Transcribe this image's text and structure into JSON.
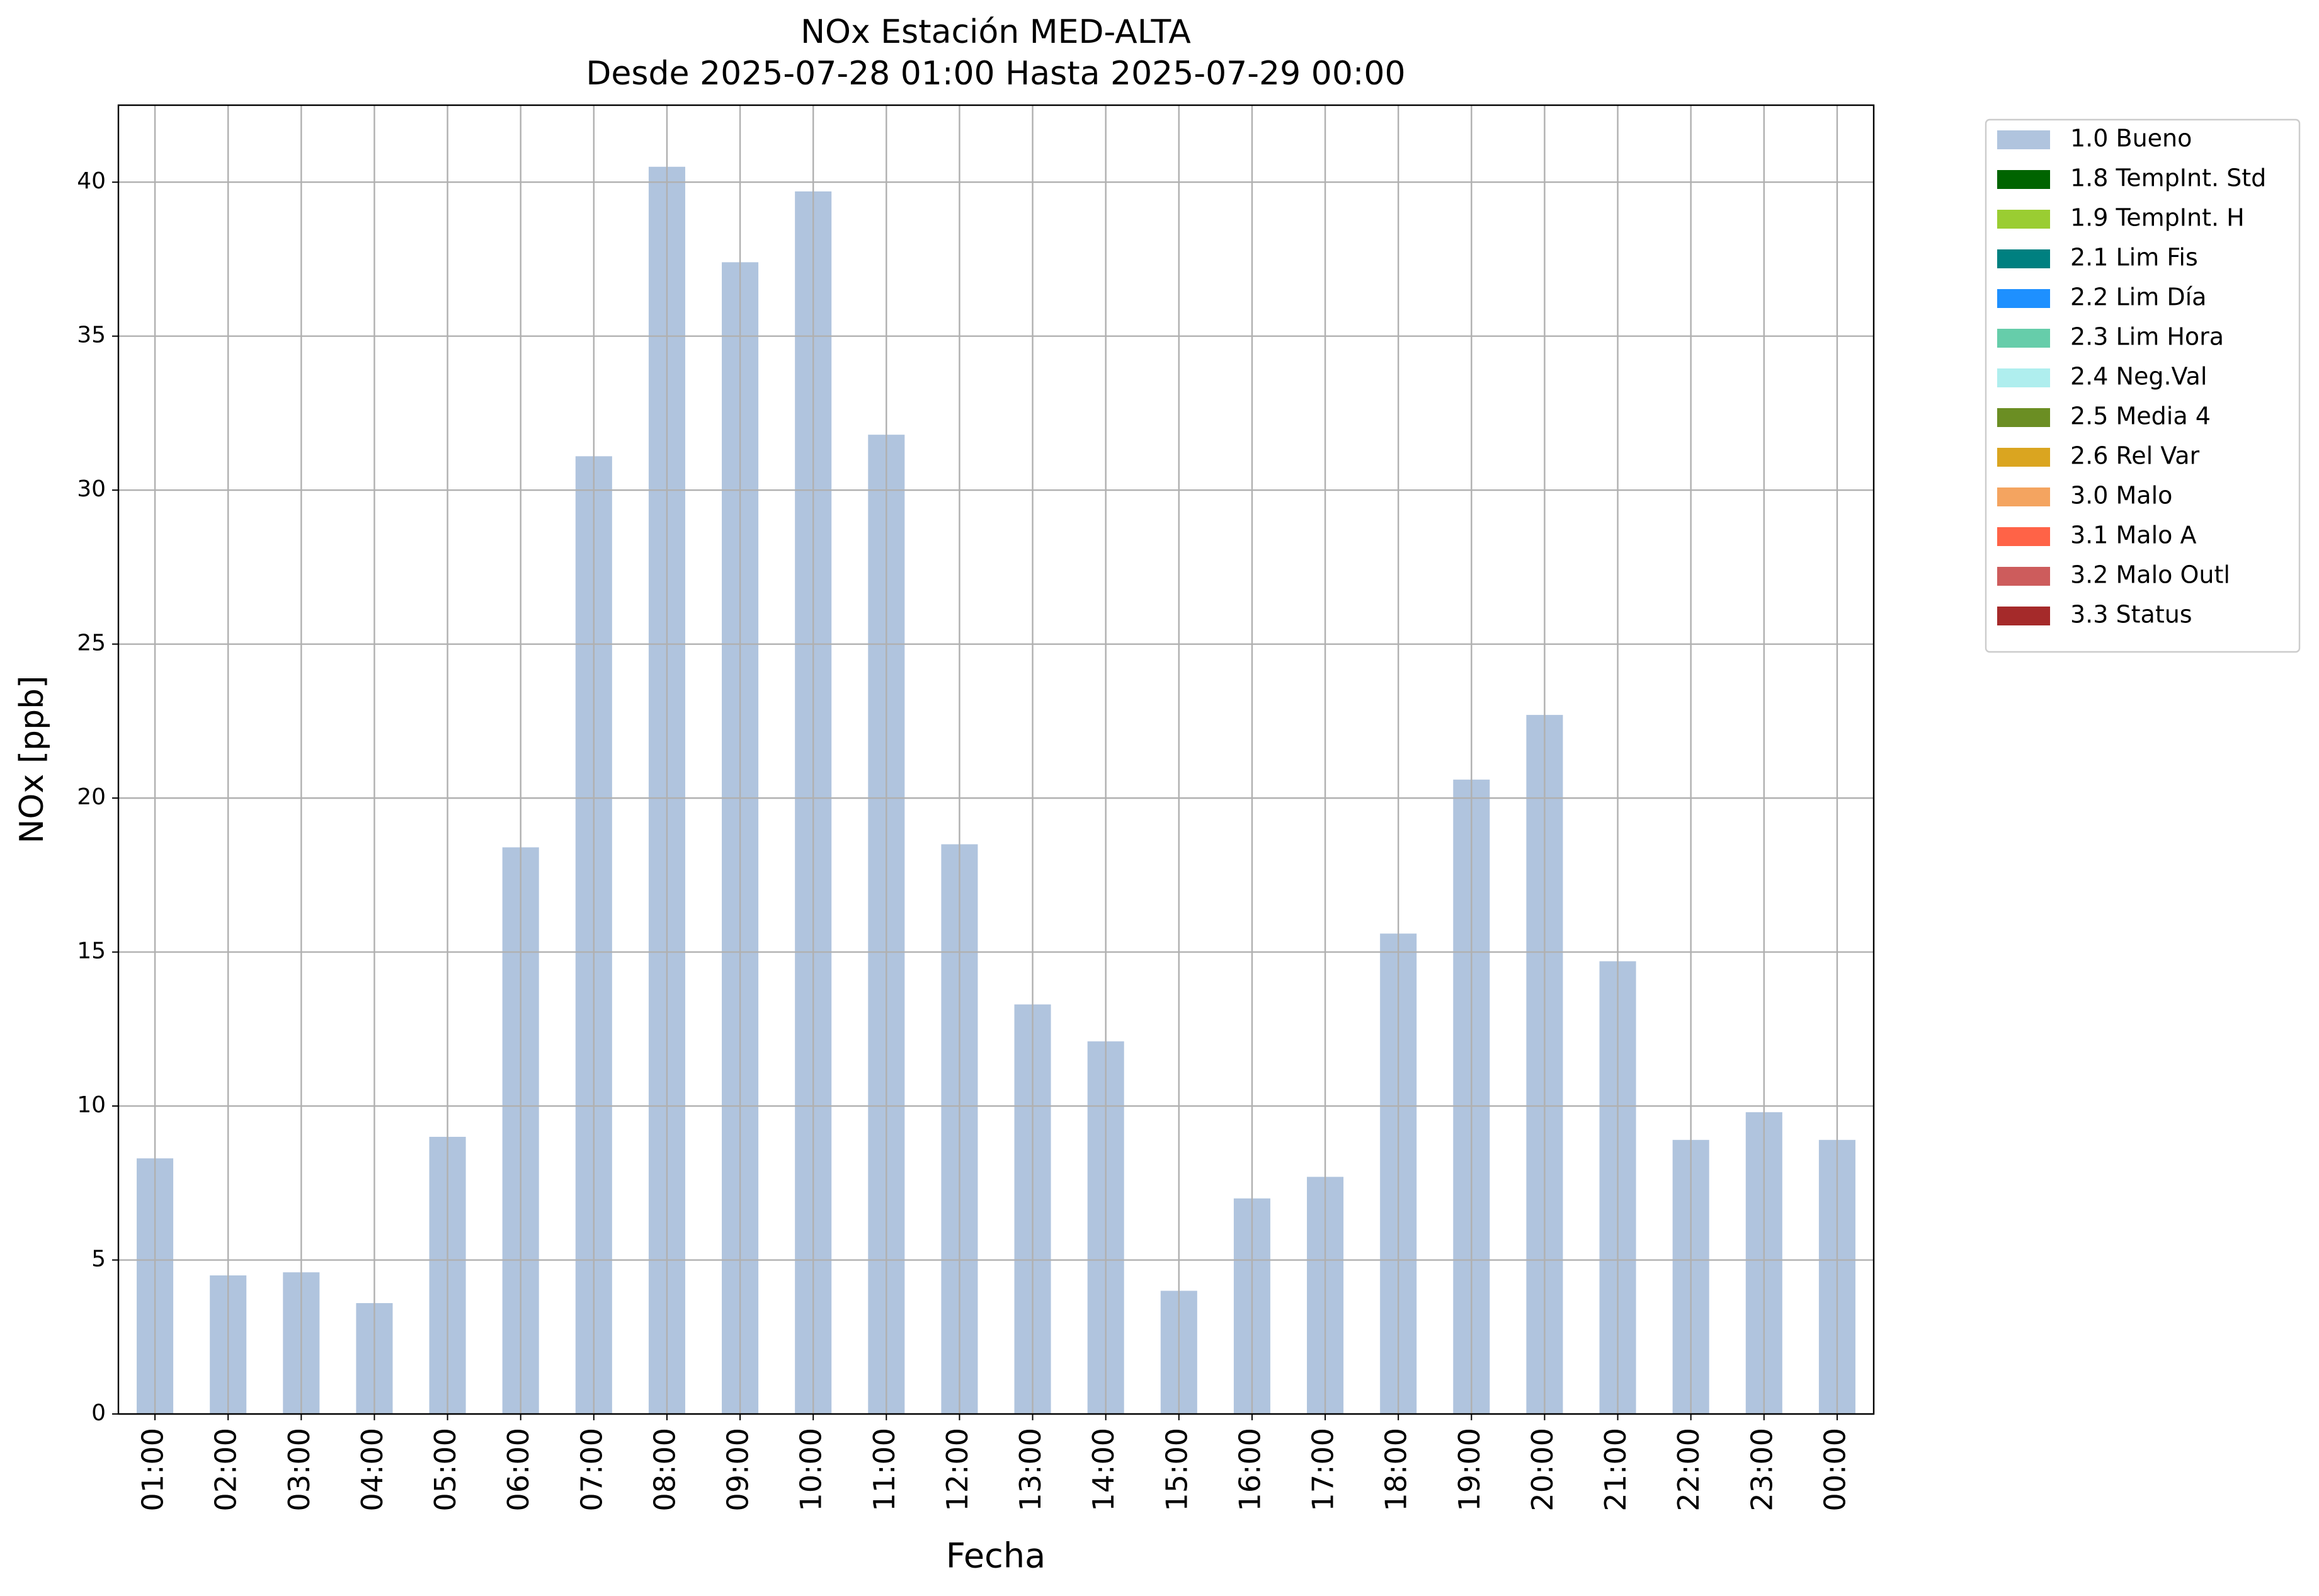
{
  "chart_data": {
    "type": "bar",
    "stacked": true,
    "title": "NOx Estación MED-ALTA",
    "subtitle": "Desde 2025-07-28 01:00 Hasta 2025-07-29 00:00",
    "x_label": "Fecha",
    "y_label": "NOx [ppb]",
    "categories": [
      "01:00",
      "02:00",
      "03:00",
      "04:00",
      "05:00",
      "06:00",
      "07:00",
      "08:00",
      "09:00",
      "10:00",
      "11:00",
      "12:00",
      "13:00",
      "14:00",
      "15:00",
      "16:00",
      "17:00",
      "18:00",
      "19:00",
      "20:00",
      "21:00",
      "22:00",
      "23:00",
      "00:00"
    ],
    "series": [
      {
        "name": "1.0 Bueno",
        "color": "#b0c4de",
        "values": [
          8.3,
          4.5,
          4.6,
          3.6,
          9.0,
          18.4,
          31.1,
          40.5,
          37.4,
          39.7,
          31.8,
          18.5,
          13.3,
          12.1,
          4.0,
          7.0,
          7.7,
          15.6,
          20.6,
          22.7,
          14.7,
          8.9,
          9.8,
          8.9
        ]
      },
      {
        "name": "1.8 TempInt. Std",
        "color": "#006400",
        "values": [
          0,
          0,
          0,
          0,
          0,
          0,
          0,
          0,
          0,
          0,
          0,
          0,
          0,
          0,
          0,
          0,
          0,
          0,
          0,
          0,
          0,
          0,
          0,
          0
        ]
      },
      {
        "name": "1.9 TempInt. H",
        "color": "#9acd32",
        "values": [
          0,
          0,
          0,
          0,
          0,
          0,
          0,
          0,
          0,
          0,
          0,
          0,
          0,
          0,
          0,
          0,
          0,
          0,
          0,
          0,
          0,
          0,
          0,
          0
        ]
      },
      {
        "name": "2.1 Lim Fis",
        "color": "#008080",
        "values": [
          0,
          0,
          0,
          0,
          0,
          0,
          0,
          0,
          0,
          0,
          0,
          0,
          0,
          0,
          0,
          0,
          0,
          0,
          0,
          0,
          0,
          0,
          0,
          0
        ]
      },
      {
        "name": "2.2 Lim Día",
        "color": "#1e90ff",
        "values": [
          0,
          0,
          0,
          0,
          0,
          0,
          0,
          0,
          0,
          0,
          0,
          0,
          0,
          0,
          0,
          0,
          0,
          0,
          0,
          0,
          0,
          0,
          0,
          0
        ]
      },
      {
        "name": "2.3 Lim Hora",
        "color": "#66cdaa",
        "values": [
          0,
          0,
          0,
          0,
          0,
          0,
          0,
          0,
          0,
          0,
          0,
          0,
          0,
          0,
          0,
          0,
          0,
          0,
          0,
          0,
          0,
          0,
          0,
          0
        ]
      },
      {
        "name": "2.4 Neg.Val",
        "color": "#afeeee",
        "values": [
          0,
          0,
          0,
          0,
          0,
          0,
          0,
          0,
          0,
          0,
          0,
          0,
          0,
          0,
          0,
          0,
          0,
          0,
          0,
          0,
          0,
          0,
          0,
          0
        ]
      },
      {
        "name": "2.5 Media 4",
        "color": "#6b8e23",
        "values": [
          0,
          0,
          0,
          0,
          0,
          0,
          0,
          0,
          0,
          0,
          0,
          0,
          0,
          0,
          0,
          0,
          0,
          0,
          0,
          0,
          0,
          0,
          0,
          0
        ]
      },
      {
        "name": "2.6 Rel Var",
        "color": "#daa520",
        "values": [
          0,
          0,
          0,
          0,
          0,
          0,
          0,
          0,
          0,
          0,
          0,
          0,
          0,
          0,
          0,
          0,
          0,
          0,
          0,
          0,
          0,
          0,
          0,
          0
        ]
      },
      {
        "name": "3.0 Malo",
        "color": "#f4a460",
        "values": [
          0,
          0,
          0,
          0,
          0,
          0,
          0,
          0,
          0,
          0,
          0,
          0,
          0,
          0,
          0,
          0,
          0,
          0,
          0,
          0,
          0,
          0,
          0,
          0
        ]
      },
      {
        "name": "3.1 Malo A",
        "color": "#ff6347",
        "values": [
          0,
          0,
          0,
          0,
          0,
          0,
          0,
          0,
          0,
          0,
          0,
          0,
          0,
          0,
          0,
          0,
          0,
          0,
          0,
          0,
          0,
          0,
          0,
          0
        ]
      },
      {
        "name": "3.2 Malo Outl",
        "color": "#cd5c5c",
        "values": [
          0,
          0,
          0,
          0,
          0,
          0,
          0,
          0,
          0,
          0,
          0,
          0,
          0,
          0,
          0,
          0,
          0,
          0,
          0,
          0,
          0,
          0,
          0,
          0
        ]
      },
      {
        "name": "3.3 Status",
        "color": "#a52a2a",
        "values": [
          0,
          0,
          0,
          0,
          0,
          0,
          0,
          0,
          0,
          0,
          0,
          0,
          0,
          0,
          0,
          0,
          0,
          0,
          0,
          0,
          0,
          0,
          0,
          0
        ]
      }
    ],
    "ylim": [
      0,
      42.5
    ],
    "yticks": [
      0,
      5,
      10,
      15,
      20,
      25,
      30,
      35,
      40
    ],
    "grid": true,
    "legend": "outside-upper-right"
  }
}
